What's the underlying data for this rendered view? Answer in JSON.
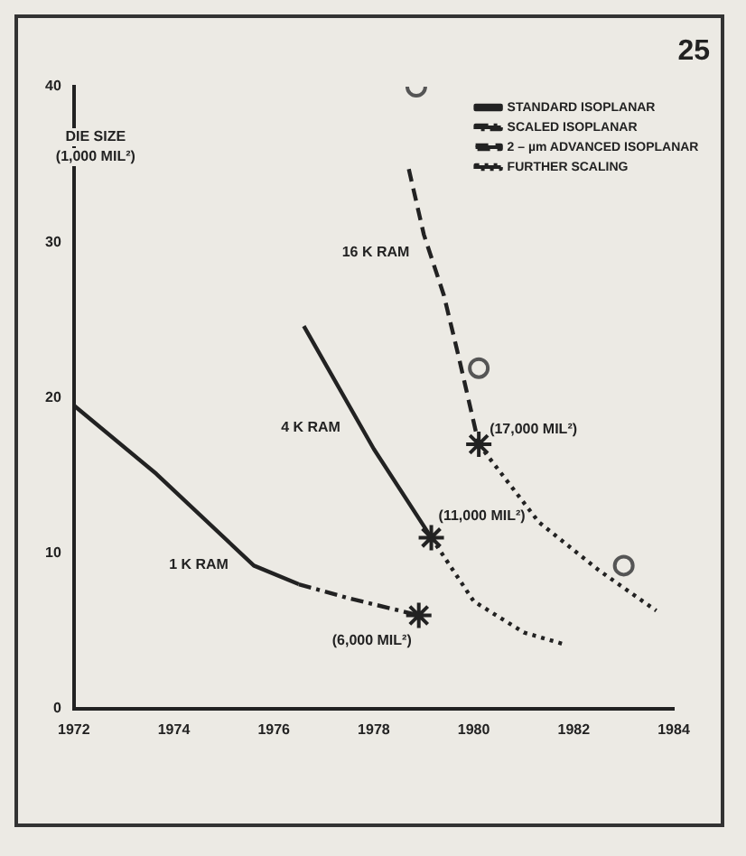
{
  "chart_data": {
    "type": "line",
    "ylabel": "DIE SIZE (1,000 MIL²)",
    "xlim": [
      1972,
      1984
    ],
    "xticks": [
      1972,
      1974,
      1976,
      1978,
      1980,
      1982,
      1984
    ],
    "ylim": [
      0,
      40
    ],
    "yticks": [
      0,
      10,
      20,
      30,
      40
    ],
    "grid": false,
    "legend": "top right",
    "marker": "none",
    "annotations": [
      "25",
      "1 K RAM",
      "4 K RAM",
      "16 K RAM",
      {
        "text": "(6,000 MIL²)",
        "x": 1978.9,
        "y": 6
      },
      {
        "text": "(11,000 MIL²)",
        "x": 1979.15,
        "y": 11
      },
      {
        "text": "(17,000 MIL²)",
        "x": 1980.1,
        "y": 17
      }
    ],
    "series": [
      {
        "name": "STANDARD ISOPLANAR",
        "color": "#222222",
        "line_style": "solid",
        "x": [
          1972,
          1973.65,
          1975.6,
          1976.5
        ],
        "values": [
          19.5,
          15.1,
          9.2,
          8.0
        ]
      },
      {
        "name": "SCALED ISOPLANAR",
        "color": "#222222",
        "line_style": "dashdot",
        "x": [
          1976.5,
          1977.5,
          1978.9
        ],
        "values": [
          8.0,
          7.1,
          6.0
        ]
      },
      {
        "name": "2 – µm ADVANCED ISOPLANAR",
        "color": "#222222",
        "line_style": "dashed",
        "x": [
          1978.7,
          1979.0,
          1979.4,
          1979.7,
          1980.1
        ],
        "values": [
          34.7,
          30.5,
          26.6,
          22.6,
          17
        ]
      },
      {
        "name": "FURTHER SCALING",
        "color": "#222222",
        "line_style": "dotted",
        "x": [
          1979.15,
          1980,
          1981,
          1981.85
        ],
        "values": [
          11,
          6.9,
          4.9,
          4.1
        ]
      },
      {
        "color": "#222222",
        "line_style": "solid",
        "x": [
          1976.6,
          1978,
          1979.15
        ],
        "values": [
          24.6,
          16.7,
          11
        ]
      },
      {
        "color": "#222222",
        "line_style": "dotted",
        "x": [
          1980.1,
          1981.3,
          1982.5,
          1983.65
        ],
        "values": [
          17,
          12,
          8.9,
          6.3
        ]
      },
      {
        "type": "scatter",
        "marker": "circle",
        "color": "#555555",
        "x": [
          1978.85,
          1980.1,
          1983.0
        ],
        "values": [
          40,
          21.9,
          9.2
        ]
      },
      {
        "type": "scatter",
        "marker": "cross",
        "color": "#222222",
        "x": [
          1978.9,
          1979.15,
          1980.1
        ],
        "values": [
          6,
          11,
          17
        ]
      }
    ]
  }
}
